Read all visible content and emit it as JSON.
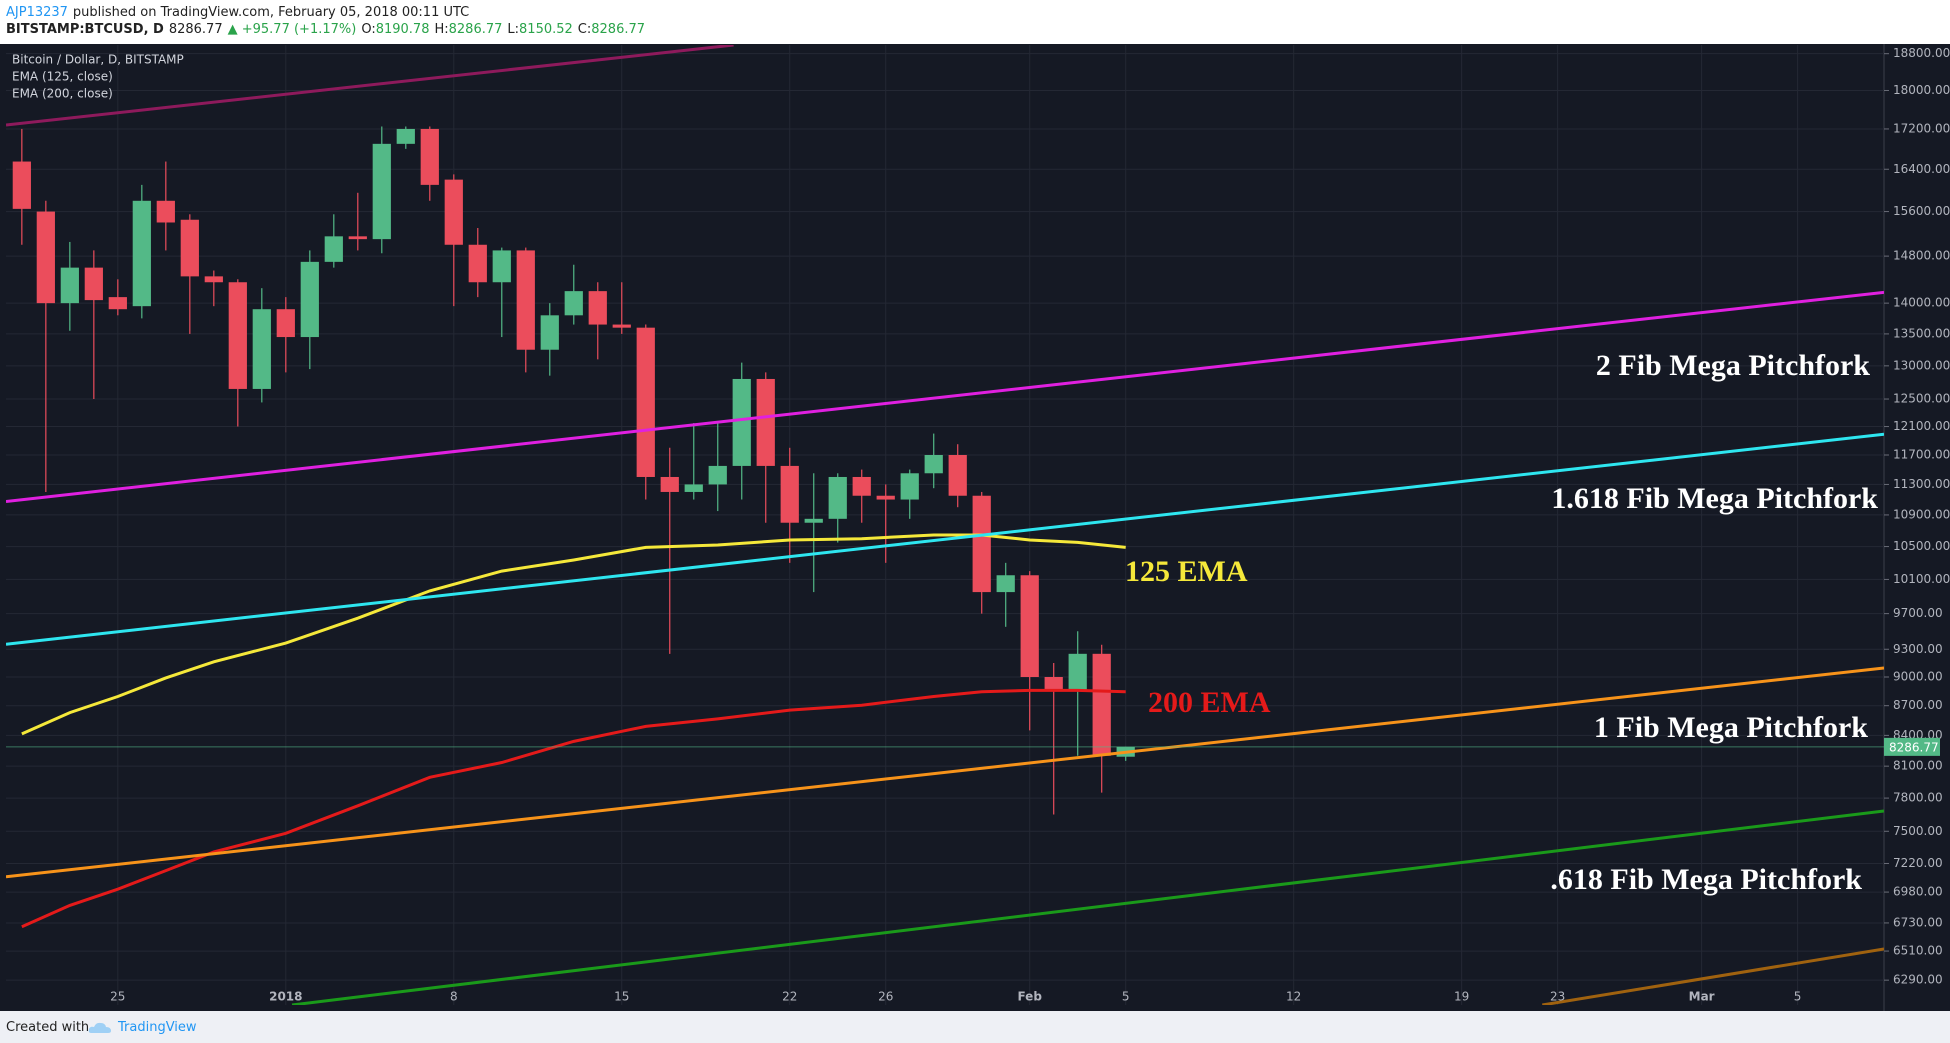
{
  "header": {
    "author": "AJP13237",
    "published": "published on TradingView.com, February 05, 2018 00:11 UTC",
    "symbol": "BITSTAMP:BTCUSD, D",
    "price": "8286.77",
    "change": "▲ +95.77 (+1.17%)",
    "ohlc": [
      {
        "label": "O:",
        "value": "8190.78"
      },
      {
        "label": "H:",
        "value": "8286.77"
      },
      {
        "label": "L:",
        "value": "8150.52"
      },
      {
        "label": "C:",
        "value": "8286.77"
      }
    ]
  },
  "footer": {
    "created": "Created with",
    "brand": "TradingView"
  },
  "chart_data": {
    "type": "candlestick",
    "title": "Bitcoin / Dollar, D, BITSTAMP",
    "x": [
      -11,
      -10,
      -9,
      -8,
      -7,
      -6,
      -5,
      -4,
      -3,
      -2,
      -1,
      0,
      1,
      2,
      3,
      4,
      5,
      6,
      7,
      8,
      9,
      10,
      11,
      12,
      13,
      14,
      15,
      16,
      17,
      18,
      19,
      20,
      21,
      22,
      23,
      24,
      25,
      26,
      27,
      28,
      29,
      30,
      31,
      32,
      33,
      34,
      35
    ],
    "open": [
      16550,
      15600,
      14000,
      14600,
      14100,
      13950,
      15800,
      15450,
      14450,
      14350,
      12650,
      13900,
      13450,
      14700,
      15150,
      15100,
      16900,
      17200,
      16200,
      15000,
      14350,
      14900,
      13250,
      13800,
      14200,
      13650,
      13600,
      11400,
      11200,
      11300,
      11550,
      12800,
      11550,
      10800,
      10850,
      11400,
      11150,
      11100,
      11450,
      11700,
      11150,
      9950,
      10150,
      9000,
      8850,
      9250,
      8190.78
    ],
    "high": [
      17200,
      15800,
      15050,
      14900,
      14400,
      16100,
      16550,
      15550,
      14550,
      14400,
      14250,
      14100,
      14900,
      15550,
      15950,
      17250,
      17250,
      17250,
      16300,
      15300,
      14950,
      14950,
      14000,
      14650,
      14350,
      14350,
      13650,
      11800,
      12150,
      12150,
      13050,
      12900,
      11800,
      11450,
      11450,
      11500,
      11300,
      11500,
      12000,
      11850,
      11200,
      10300,
      10200,
      9150,
      9500,
      9350,
      8286.77
    ],
    "low": [
      15000,
      11200,
      13550,
      12500,
      13800,
      13750,
      14900,
      13500,
      13950,
      12100,
      12450,
      12900,
      12950,
      14600,
      14900,
      14850,
      16800,
      15800,
      13950,
      14100,
      13450,
      12900,
      12850,
      13650,
      13100,
      13500,
      11100,
      9250,
      11100,
      10950,
      11100,
      10800,
      10300,
      9950,
      10550,
      10800,
      10300,
      10850,
      11250,
      11000,
      9700,
      9550,
      8450,
      7650,
      8200,
      7850,
      8150.52
    ],
    "close": [
      15650,
      14000,
      14600,
      14050,
      13900,
      15800,
      15400,
      14450,
      14350,
      12650,
      13900,
      13450,
      14700,
      15150,
      15100,
      16900,
      17200,
      16100,
      15000,
      14350,
      14900,
      13250,
      13800,
      14200,
      13650,
      13600,
      11400,
      11200,
      11300,
      11550,
      12800,
      11550,
      10800,
      10850,
      11400,
      11150,
      11100,
      11450,
      11700,
      11150,
      9950,
      10150,
      9000,
      8850,
      9250,
      8200,
      8286.77
    ],
    "up_color": "#53b987",
    "down_color": "#eb4d5c",
    "series": [
      {
        "name": "EMA (125, close)",
        "color": "#f5e83a",
        "x": [
          -11,
          -9,
          -7,
          -5,
          -3,
          0,
          3,
          6,
          9,
          12,
          15,
          18,
          21,
          24,
          27,
          29,
          31,
          33,
          35
        ],
        "values": [
          8415,
          8629,
          8795,
          8990,
          9163,
          9368,
          9648,
          9964,
          10200,
          10335,
          10490,
          10520,
          10582,
          10598,
          10645,
          10645,
          10582,
          10552,
          10490
        ]
      },
      {
        "name": "EMA (200, close)",
        "color": "#e41a1a",
        "x": [
          -11,
          -9,
          -7,
          -5,
          -3,
          0,
          3,
          6,
          9,
          12,
          15,
          18,
          21,
          24,
          27,
          29,
          31,
          33,
          35
        ],
        "values": [
          6700,
          6871,
          7004,
          7159,
          7319,
          7482,
          7729,
          7994,
          8135,
          8341,
          8490,
          8565,
          8654,
          8705,
          8795,
          8845,
          8859,
          8859,
          8845
        ]
      },
      {
        "color": "#8e1a5c",
        "x": [
          -11.66,
          18.66
        ],
        "values": [
          17280,
          18994
        ]
      },
      {
        "color": "#e020e0",
        "x": [
          -11.66,
          66.6
        ],
        "values": [
          11075,
          14180
        ]
      },
      {
        "color": "#2ee6f0",
        "x": [
          -11.66,
          66.6
        ],
        "values": [
          9355,
          11990
        ]
      },
      {
        "color": "#f7931a",
        "x": [
          -11.66,
          66.6
        ],
        "values": [
          7107,
          9097
        ]
      },
      {
        "color": "#1a9a1a",
        "x": [
          0.26,
          66.6
        ],
        "values": [
          6108,
          7682
        ]
      },
      {
        "color": "#a0620f",
        "x": [
          52.36,
          66.6
        ],
        "values": [
          6108,
          6526
        ]
      }
    ],
    "xlim": [
      -11.66,
      66.6
    ],
    "ylim": [
      6108,
      18994
    ],
    "log_scale": true,
    "grid": true,
    "xticks": [
      {
        "value": -7,
        "label": "25"
      },
      {
        "value": 0,
        "label": "2018"
      },
      {
        "value": 7,
        "label": "8"
      },
      {
        "value": 14,
        "label": "15"
      },
      {
        "value": 21,
        "label": "22"
      },
      {
        "value": 25,
        "label": "26"
      },
      {
        "value": 31,
        "label": "Feb"
      },
      {
        "value": 35,
        "label": "5"
      },
      {
        "value": 42,
        "label": "12"
      },
      {
        "value": 49,
        "label": "19"
      },
      {
        "value": 53,
        "label": "23"
      },
      {
        "value": 59,
        "label": "Mar"
      },
      {
        "value": 63,
        "label": "5"
      }
    ],
    "yticks": [
      {
        "value": 18800,
        "label": "18800.00"
      },
      {
        "value": 18000,
        "label": "18000.00"
      },
      {
        "value": 17200,
        "label": "17200.00"
      },
      {
        "value": 16400,
        "label": "16400.00"
      },
      {
        "value": 15600,
        "label": "15600.00"
      },
      {
        "value": 14800,
        "label": "14800.00"
      },
      {
        "value": 14000,
        "label": "14000.00"
      },
      {
        "value": 13500,
        "label": "13500.00"
      },
      {
        "value": 13000,
        "label": "13000.00"
      },
      {
        "value": 12500,
        "label": "12500.00"
      },
      {
        "value": 12100,
        "label": "12100.00"
      },
      {
        "value": 11700,
        "label": "11700.00"
      },
      {
        "value": 11300,
        "label": "11300.00"
      },
      {
        "value": 10900,
        "label": "10900.00"
      },
      {
        "value": 10500,
        "label": "10500.00"
      },
      {
        "value": 10100,
        "label": "10100.00"
      },
      {
        "value": 9700,
        "label": "9700.00"
      },
      {
        "value": 9300,
        "label": "9300.00"
      },
      {
        "value": 9000,
        "label": "9000.00"
      },
      {
        "value": 8700,
        "label": "8700.00"
      },
      {
        "value": 8400,
        "label": "8400.00"
      },
      {
        "value": 8100,
        "label": "8100.00"
      },
      {
        "value": 7800,
        "label": "7800.00"
      },
      {
        "value": 7500,
        "label": "7500.00"
      },
      {
        "value": 7220,
        "label": "7220.00"
      },
      {
        "value": 6980,
        "label": "6980.00"
      },
      {
        "value": 6730,
        "label": "6730.00"
      },
      {
        "value": 6510,
        "label": "6510.00"
      },
      {
        "value": 6290,
        "label": "6290.00"
      }
    ],
    "last_price": 8286.77,
    "last_price_color": "#53b987",
    "annotations": [
      {
        "text": "2 Fib Mega Pitchfork",
        "color": "#ffffff"
      },
      {
        "text": "1.618 Fib Mega Pitchfork",
        "color": "#ffffff"
      },
      {
        "text": "125 EMA",
        "color": "#f5e83a"
      },
      {
        "text": "200 EMA",
        "color": "#e41a1a"
      },
      {
        "text": "1 Fib Mega Pitchfork",
        "color": "#ffffff"
      },
      {
        "text": ".618 Fib Mega Pitchfork",
        "color": "#ffffff"
      }
    ]
  }
}
